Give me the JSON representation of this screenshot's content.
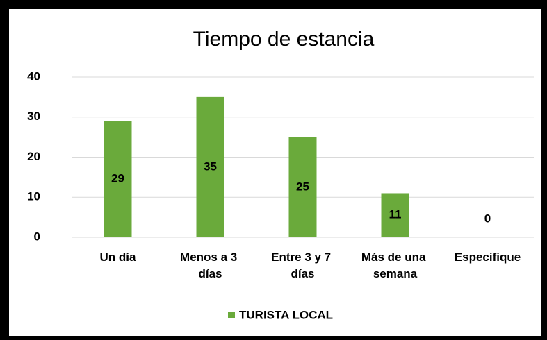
{
  "chart_data": {
    "type": "bar",
    "title": "Tiempo de estancia",
    "categories": [
      "Un día",
      "Menos a 3 días",
      "Entre 3 y 7 días",
      "Más de una semana",
      "Especifique"
    ],
    "series": [
      {
        "name": "TURISTA LOCAL",
        "color": "#6aaa3b",
        "values": [
          29,
          35,
          25,
          11,
          0
        ]
      }
    ],
    "ylim": [
      0,
      40
    ],
    "yticks": [
      0,
      10,
      20,
      30,
      40
    ],
    "grid": true,
    "legend": "bottom"
  }
}
